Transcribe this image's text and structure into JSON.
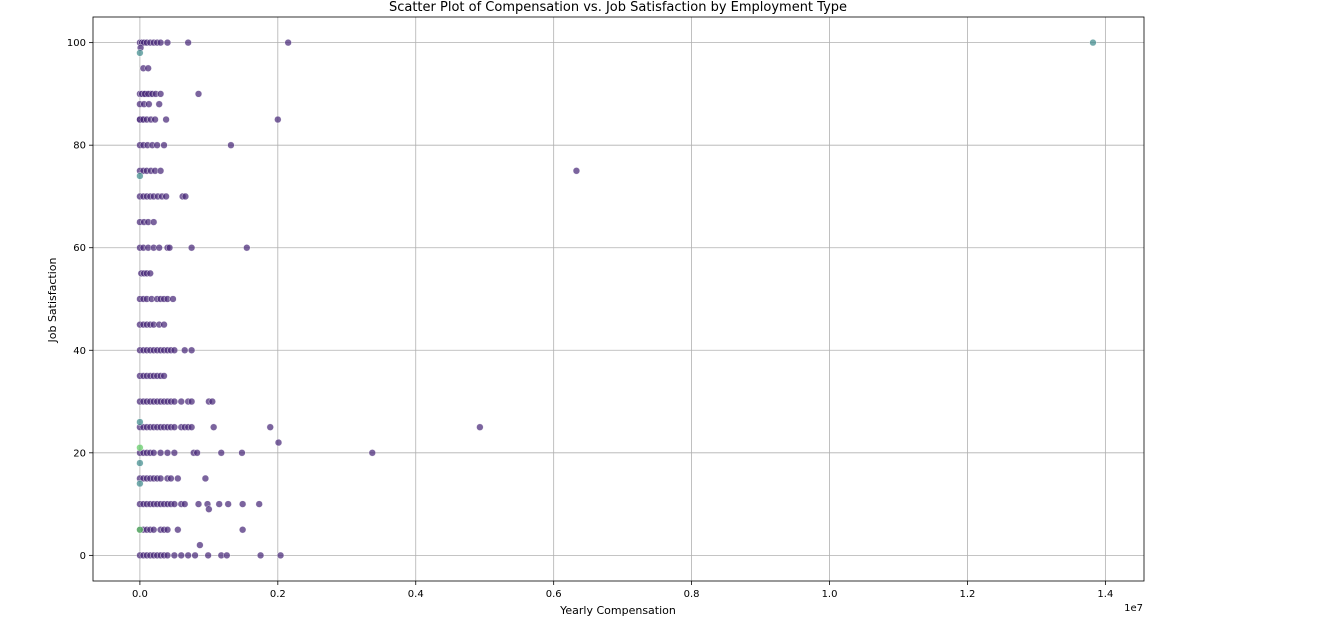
{
  "chart_data": {
    "type": "scatter",
    "title": "Scatter Plot of Compensation vs. Job Satisfaction by Employment Type",
    "xlabel": "Yearly Compensation",
    "ylabel": "Job Satisfaction",
    "x_offset_label": "1e7",
    "xlim": [
      -680000,
      14560000
    ],
    "ylim": [
      -5,
      105
    ],
    "xticks": [
      0,
      2000000,
      4000000,
      6000000,
      8000000,
      10000000,
      12000000,
      14000000
    ],
    "xtick_labels": [
      "0.0",
      "0.2",
      "0.4",
      "0.6",
      "0.8",
      "1.0",
      "1.2",
      "1.4"
    ],
    "yticks": [
      0,
      20,
      40,
      60,
      80,
      100
    ],
    "ytick_labels": [
      "0",
      "20",
      "40",
      "60",
      "80",
      "100"
    ],
    "grid": true,
    "colors": {
      "main": "#482878",
      "teal": "#3e8a8c",
      "green": "#5ec962",
      "outline": "#ffffff",
      "grid": "#b0b0b0"
    },
    "series": [
      {
        "color": "#482878",
        "x": [
          0,
          30000,
          60000,
          100000,
          150000,
          200000,
          250000,
          300000,
          400000,
          700000,
          2150000,
          10000,
          50000,
          120000,
          0,
          30000,
          80000,
          150000,
          0,
          30000,
          70000,
          120000,
          180000,
          230000,
          300000,
          850000,
          0,
          60000,
          130000,
          280000,
          0,
          50000,
          100000,
          160000,
          220000,
          380000,
          2000000,
          0,
          50000,
          110000,
          180000,
          250000,
          350000,
          1320000,
          0,
          50000,
          100000,
          160000,
          220000,
          300000,
          6330000,
          0,
          50000,
          100000,
          150000,
          200000,
          260000,
          320000,
          380000,
          620000,
          660000,
          0,
          60000,
          120000,
          200000,
          0,
          50000,
          120000,
          200000,
          280000,
          400000,
          430000,
          750000,
          1550000,
          20000,
          60000,
          100000,
          150000,
          0,
          50000,
          100000,
          170000,
          250000,
          300000,
          350000,
          400000,
          480000,
          0,
          50000,
          100000,
          150000,
          200000,
          280000,
          350000,
          0,
          50000,
          100000,
          150000,
          200000,
          250000,
          300000,
          350000,
          400000,
          450000,
          500000,
          650000,
          750000,
          0,
          50000,
          100000,
          150000,
          200000,
          250000,
          300000,
          350000,
          0,
          50000,
          100000,
          150000,
          200000,
          250000,
          300000,
          350000,
          400000,
          450000,
          500000,
          600000,
          700000,
          750000,
          1000000,
          1050000,
          0,
          50000,
          100000,
          150000,
          200000,
          250000,
          300000,
          350000,
          400000,
          450000,
          500000,
          600000,
          650000,
          700000,
          750000,
          1070000,
          1890000,
          4930000,
          0,
          50000,
          100000,
          150000,
          200000,
          300000,
          400000,
          500000,
          780000,
          830000,
          1180000,
          1480000,
          2010000,
          3370000,
          0,
          50000,
          100000,
          150000,
          200000,
          250000,
          300000,
          400000,
          450000,
          550000,
          950000,
          0,
          50000,
          100000,
          150000,
          200000,
          250000,
          300000,
          350000,
          400000,
          450000,
          500000,
          600000,
          650000,
          850000,
          980000,
          1000000,
          1150000,
          1280000,
          1490000,
          1730000,
          0,
          50000,
          100000,
          150000,
          200000,
          300000,
          350000,
          400000,
          550000,
          1490000,
          0,
          50000,
          100000,
          150000,
          200000,
          250000,
          300000,
          350000,
          400000,
          500000,
          600000,
          700000,
          800000,
          870000,
          990000,
          1180000,
          1260000,
          1750000,
          2040000
        ],
        "y": [
          100,
          100,
          100,
          100,
          100,
          100,
          100,
          100,
          100,
          100,
          100,
          99,
          95,
          95,
          90,
          90,
          90,
          90,
          85,
          85,
          90,
          90,
          90,
          90,
          90,
          90,
          88,
          88,
          88,
          88,
          85,
          85,
          85,
          85,
          85,
          85,
          85,
          80,
          80,
          80,
          80,
          80,
          80,
          80,
          75,
          75,
          75,
          75,
          75,
          75,
          75,
          70,
          70,
          70,
          70,
          70,
          70,
          70,
          70,
          70,
          70,
          65,
          65,
          65,
          65,
          60,
          60,
          60,
          60,
          60,
          60,
          60,
          60,
          60,
          55,
          55,
          55,
          55,
          50,
          50,
          50,
          50,
          50,
          50,
          50,
          50,
          50,
          45,
          45,
          45,
          45,
          45,
          45,
          45,
          40,
          40,
          40,
          40,
          40,
          40,
          40,
          40,
          40,
          40,
          40,
          40,
          40,
          35,
          35,
          35,
          35,
          35,
          35,
          35,
          35,
          30,
          30,
          30,
          30,
          30,
          30,
          30,
          30,
          30,
          30,
          30,
          30,
          30,
          30,
          30,
          30,
          25,
          25,
          25,
          25,
          25,
          25,
          25,
          25,
          25,
          25,
          25,
          25,
          25,
          25,
          25,
          25,
          25,
          25,
          20,
          20,
          20,
          20,
          20,
          20,
          20,
          20,
          20,
          20,
          20,
          20,
          22,
          20,
          15,
          15,
          15,
          15,
          15,
          15,
          15,
          15,
          15,
          15,
          15,
          10,
          10,
          10,
          10,
          10,
          10,
          10,
          10,
          10,
          10,
          10,
          10,
          10,
          10,
          10,
          9,
          10,
          10,
          10,
          10,
          5,
          5,
          5,
          5,
          5,
          5,
          5,
          5,
          5,
          5,
          0,
          0,
          0,
          0,
          0,
          0,
          0,
          0,
          0,
          0,
          0,
          0,
          0,
          2,
          0,
          0,
          0,
          0,
          0
        ]
      },
      {
        "color": "#3e8a8c",
        "x": [
          13820000,
          0,
          0,
          0,
          0,
          0
        ],
        "y": [
          100,
          98,
          74,
          26,
          18,
          14
        ]
      },
      {
        "color": "#5ec962",
        "x": [
          0,
          0
        ],
        "y": [
          21,
          5
        ]
      }
    ]
  }
}
